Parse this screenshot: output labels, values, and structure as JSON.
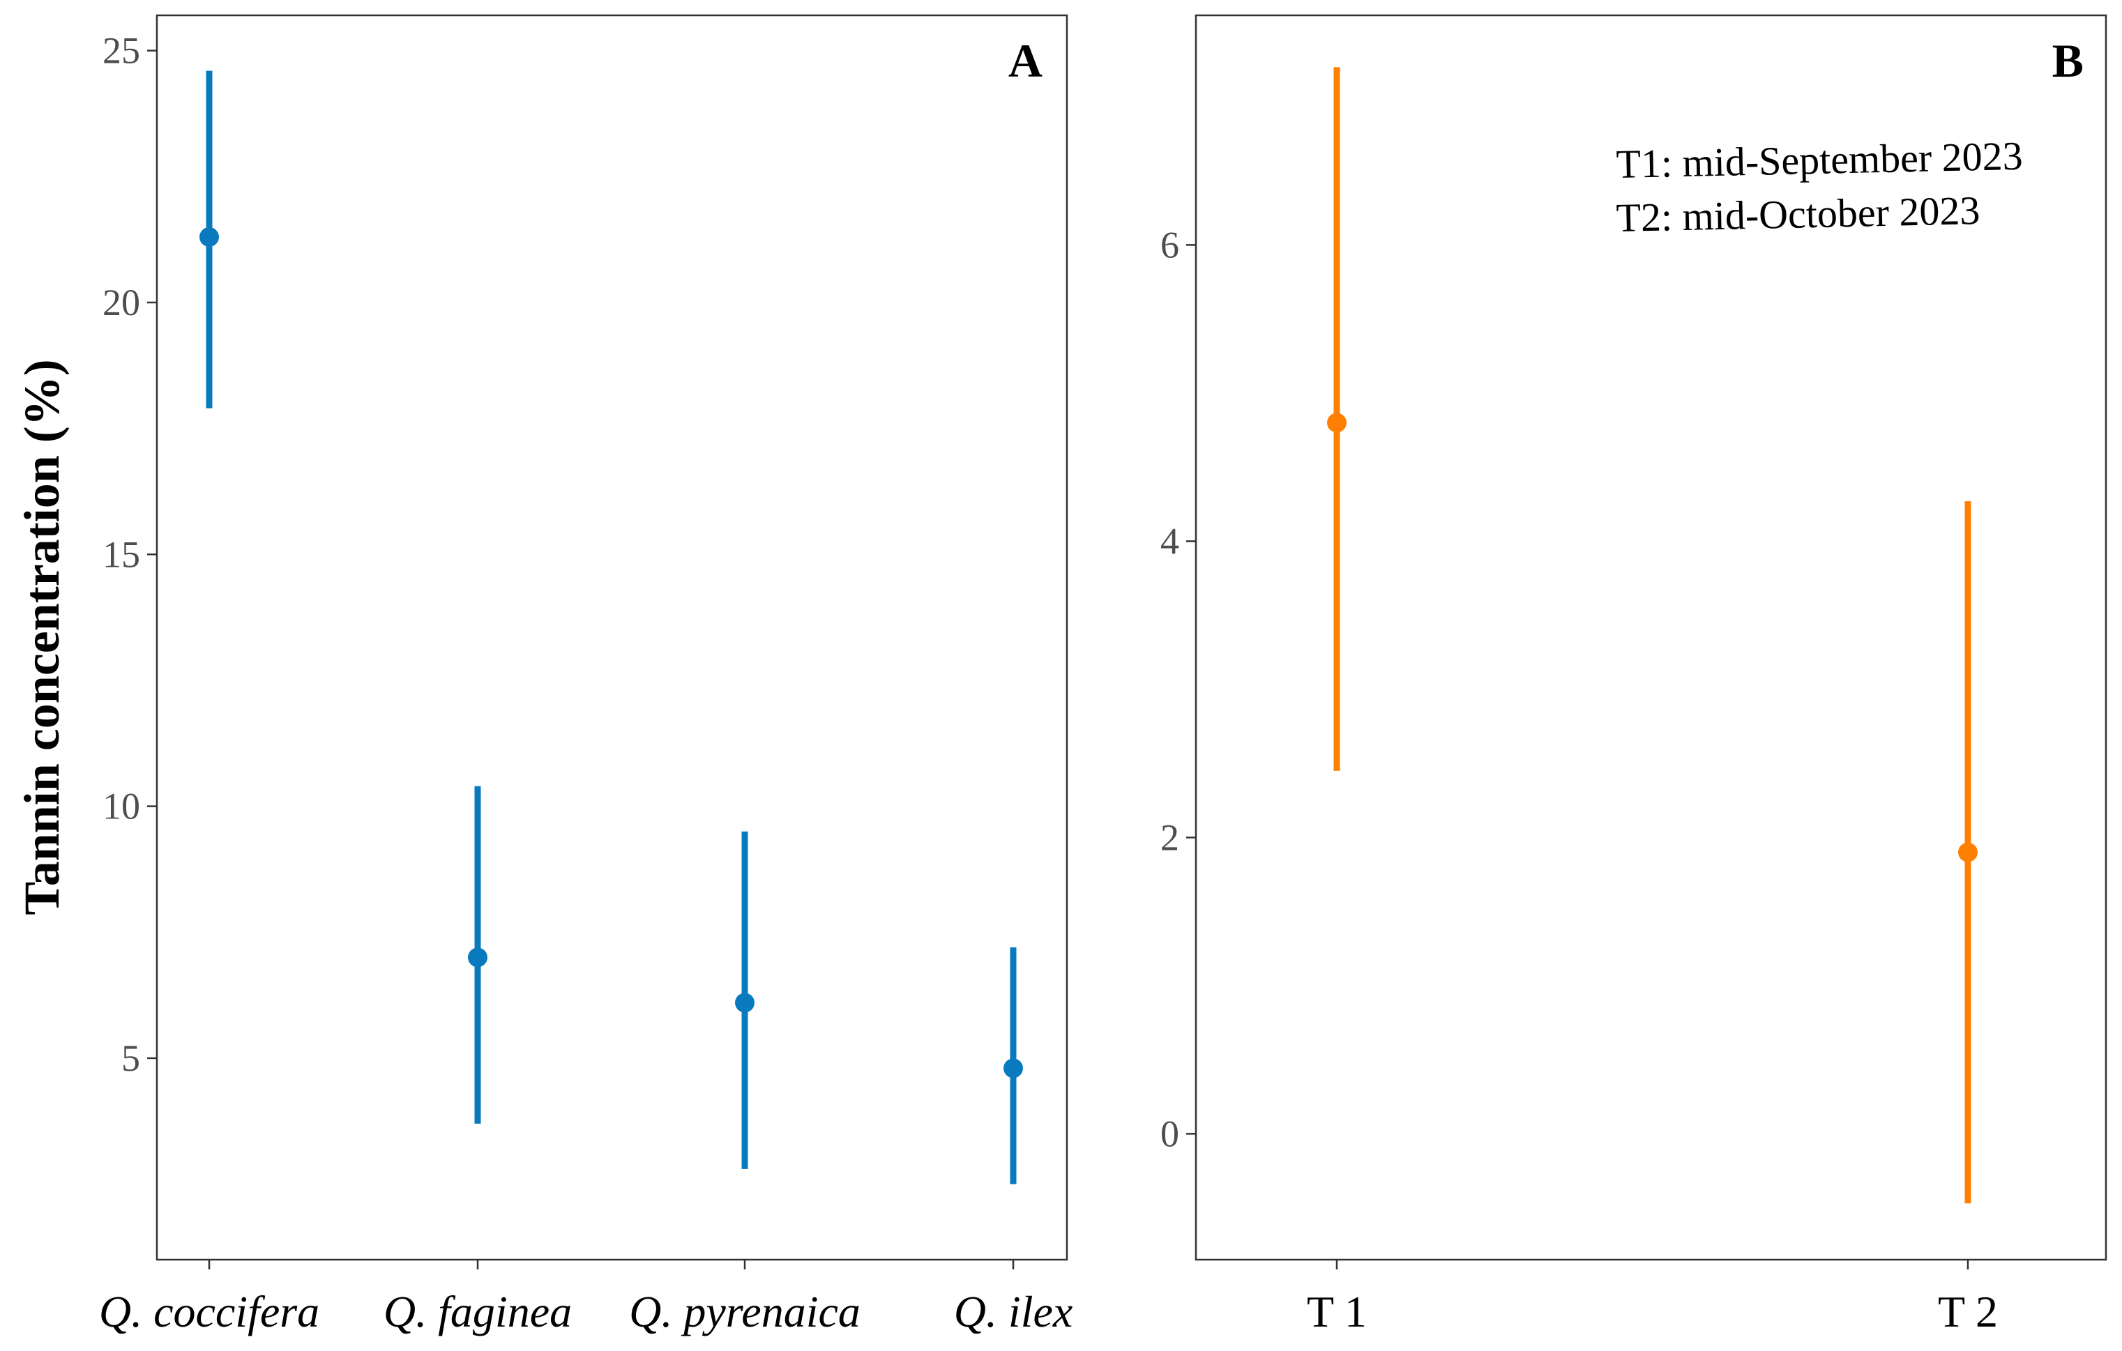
{
  "chart_data": [
    {
      "type": "scatter",
      "panel_label": "A",
      "ylabel": "Tannin concentration (%)",
      "xlabel": "",
      "categories": [
        "Q. coccifera",
        "Q. faginea",
        "Q. pyrenaica",
        "Q. ilex"
      ],
      "categories_italic": true,
      "series": [
        {
          "name": "mean",
          "color": "#0A7ABF",
          "values": [
            21.3,
            7.0,
            6.1,
            4.8
          ],
          "lower": [
            17.9,
            3.7,
            2.8,
            2.5
          ],
          "upper": [
            24.6,
            10.4,
            9.5,
            7.2
          ]
        }
      ],
      "ylim": [
        1.0,
        25.7
      ],
      "yticks": [
        5,
        10,
        15,
        20,
        25
      ],
      "grid": false
    },
    {
      "type": "scatter",
      "panel_label": "B",
      "ylabel": "",
      "xlabel": "",
      "categories": [
        "T 1",
        "T 2"
      ],
      "categories_italic": false,
      "series": [
        {
          "name": "mean",
          "color": "#FF8000",
          "values": [
            4.8,
            1.9
          ],
          "lower": [
            2.45,
            -0.47
          ],
          "upper": [
            7.2,
            4.27
          ]
        }
      ],
      "ylim": [
        -0.85,
        7.55
      ],
      "yticks": [
        0,
        2,
        4,
        6
      ],
      "annotation": [
        "T1: mid-September 2023",
        "T2: mid-October 2023"
      ],
      "grid": false
    }
  ]
}
